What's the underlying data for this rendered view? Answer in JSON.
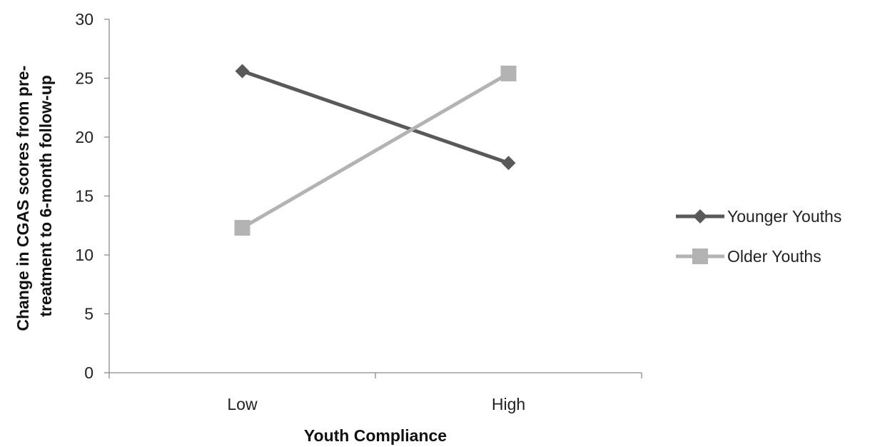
{
  "chart_data": {
    "type": "line",
    "categories": [
      "Low",
      "High"
    ],
    "series": [
      {
        "name": "Younger Youths",
        "values": [
          25.6,
          17.8
        ],
        "color": "#595959",
        "marker": "diamond"
      },
      {
        "name": "Older Youths",
        "values": [
          12.3,
          25.4
        ],
        "color": "#b3b3b3",
        "marker": "square"
      }
    ],
    "xlabel": "Youth Compliance",
    "ylabel_lines": [
      "Change in CGAS scores from pre-",
      "treatment to 6-month follow-up"
    ],
    "ylim": [
      0,
      30
    ],
    "yticks": [
      0,
      5,
      10,
      15,
      20,
      25,
      30
    ],
    "grid": false,
    "legend_position": "right"
  }
}
